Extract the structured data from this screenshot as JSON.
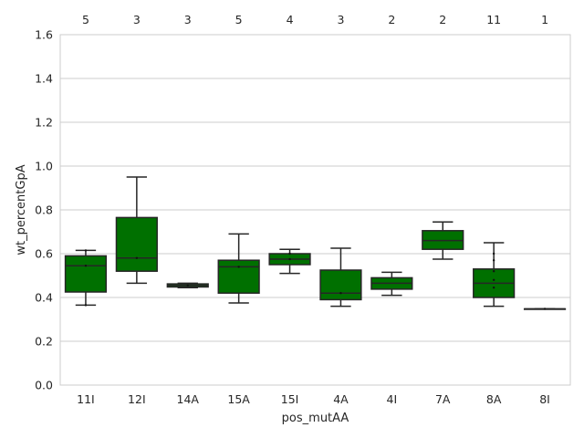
{
  "chart_data": {
    "type": "box",
    "xlabel": "pos_mutAA",
    "ylabel": "wt_percentGpA",
    "ylim": [
      0.0,
      1.6
    ],
    "yticks": [
      "0.0",
      "0.2",
      "0.4",
      "0.6",
      "0.8",
      "1.0",
      "1.2",
      "1.4",
      "1.6"
    ],
    "grid": "horizontal",
    "box_color": "#007000",
    "categories": [
      "11I",
      "12I",
      "14A",
      "15A",
      "15I",
      "4A",
      "4I",
      "7A",
      "8A",
      "8I"
    ],
    "counts": [
      "5",
      "3",
      "3",
      "5",
      "4",
      "3",
      "2",
      "2",
      "11",
      "1"
    ],
    "boxes": [
      {
        "whisker_low": 0.365,
        "q1": 0.425,
        "median": 0.545,
        "q3": 0.59,
        "whisker_high": 0.615,
        "points": [
          0.365,
          0.545,
          0.615
        ]
      },
      {
        "whisker_low": 0.465,
        "q1": 0.52,
        "median": 0.58,
        "q3": 0.765,
        "whisker_high": 0.95,
        "points": [
          0.58
        ]
      },
      {
        "whisker_low": 0.445,
        "q1": 0.448,
        "median": 0.455,
        "q3": 0.462,
        "whisker_high": 0.465,
        "points": [
          0.455
        ]
      },
      {
        "whisker_low": 0.375,
        "q1": 0.42,
        "median": 0.54,
        "q3": 0.57,
        "whisker_high": 0.69,
        "points": [
          0.54
        ]
      },
      {
        "whisker_low": 0.51,
        "q1": 0.55,
        "median": 0.575,
        "q3": 0.6,
        "whisker_high": 0.62,
        "points": [
          0.575,
          0.6
        ]
      },
      {
        "whisker_low": 0.36,
        "q1": 0.39,
        "median": 0.42,
        "q3": 0.525,
        "whisker_high": 0.625,
        "points": [
          0.42
        ]
      },
      {
        "whisker_low": 0.41,
        "q1": 0.438,
        "median": 0.465,
        "q3": 0.49,
        "whisker_high": 0.515,
        "points": []
      },
      {
        "whisker_low": 0.575,
        "q1": 0.62,
        "median": 0.66,
        "q3": 0.705,
        "whisker_high": 0.745,
        "points": []
      },
      {
        "whisker_low": 0.36,
        "q1": 0.4,
        "median": 0.465,
        "q3": 0.53,
        "whisker_high": 0.65,
        "points": [
          0.445,
          0.48,
          0.52,
          0.57,
          0.6
        ]
      },
      {
        "whisker_low": 0.348,
        "q1": 0.348,
        "median": 0.348,
        "q3": 0.348,
        "whisker_high": 0.348,
        "points": [
          0.348
        ]
      }
    ]
  }
}
